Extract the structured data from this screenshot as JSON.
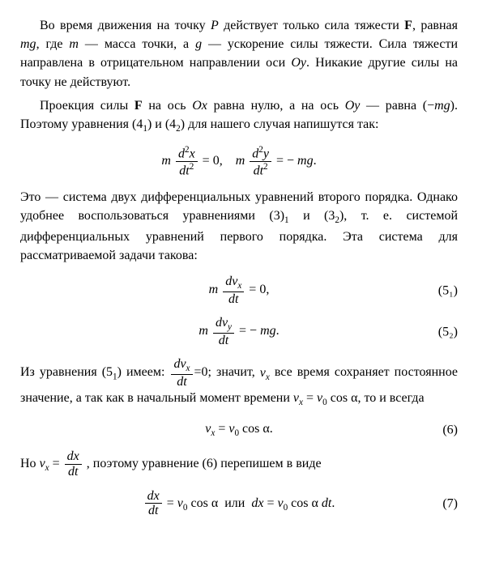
{
  "p1": "Во время движения на точку P действует только сила тяжести F, равная mg, где m — масса точки, а g — ускорение силы тяжести. Сила тяжести направлена в отрицательном направлении оси Oy. Никакие другие силы на точку не действуют.",
  "p2": "Проекция силы F на ось Ox равна нулю, а на ось Oy — равна (− mg). Поэтому уравнения (4₁) и (4₂) для нашего случая напишутся так:",
  "eq1": "m d²x/dt² = 0,   m d²y/dt² = − mg.",
  "p3": "Это — система двух дифференциальных уравнений второго порядка. Однако удобнее воспользоваться уравнениями (3)₁ и (3₂), т. е. системой дифференциальных уравнений первого порядка. Эта система для рассматриваемой задачи такова:",
  "eq2": "m dvₓ/dt = 0,",
  "eq2_num": "(5₁)",
  "eq3": "m dvᵧ/dt = − mg.",
  "eq3_num": "(5₂)",
  "p4a": "Из уравнения (5₁) имеем: ",
  "p4b": "; значит, vₓ все время сохраняет постоянное значение, а так как в начальный момент времени vₓ = v₀ cos α, то и всегда",
  "eq4": "vₓ = v₀ cos α.",
  "eq4_num": "(6)",
  "p5a": "Но ",
  "p5b": ", поэтому уравнение (6) перепишем в виде",
  "eq5": "dx/dt = v₀ cos α  или  dx = v₀ cos α dt.",
  "eq5_num": "(7)"
}
